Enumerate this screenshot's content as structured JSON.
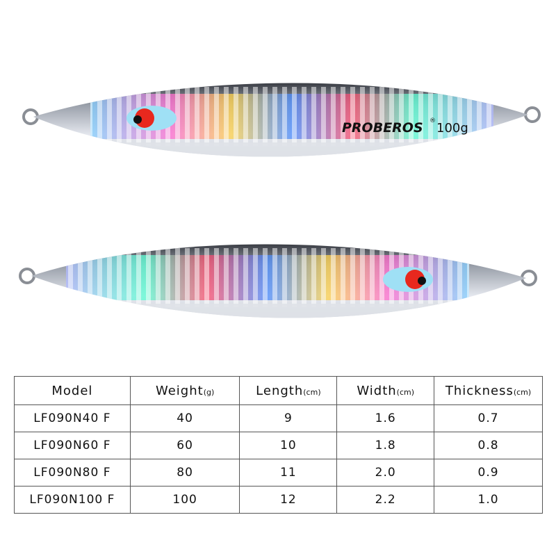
{
  "lure_text": {
    "brand": "PROBEROS",
    "mark": "®",
    "weight": "100g"
  },
  "table": {
    "header": [
      {
        "label": "Model"
      },
      {
        "label": "Weight",
        "unit": "(g)"
      },
      {
        "label": "Length",
        "unit": "(cm)"
      },
      {
        "label": "Width",
        "unit": "(cm)"
      },
      {
        "label": "Thickness",
        "unit": "(cm)"
      }
    ],
    "rows": [
      [
        "LF090N40 F",
        "40",
        "9",
        "1.6",
        "0.7"
      ],
      [
        "LF090N60 F",
        "60",
        "10",
        "1.8",
        "0.8"
      ],
      [
        "LF090N80 F",
        "80",
        "11",
        "2.0",
        "0.9"
      ],
      [
        "LF090N100 F",
        "100",
        "12",
        "2.2",
        "1.0"
      ]
    ]
  }
}
